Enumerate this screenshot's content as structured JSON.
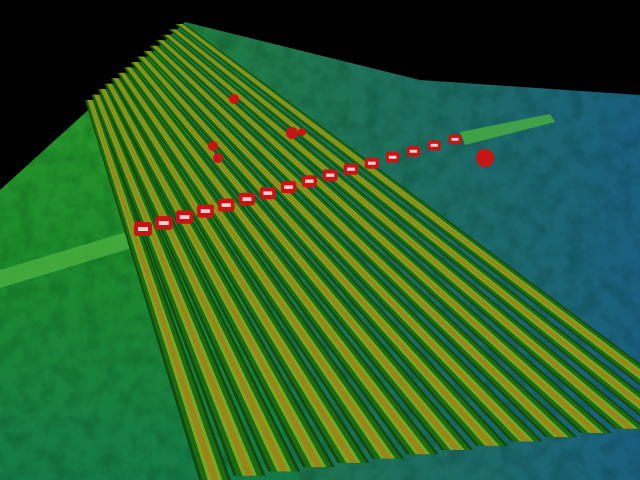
{
  "scene": {
    "colors": {
      "background": "#000000",
      "ground": "#1f8a2a",
      "ground_dark": "#0d5a3a",
      "ground_blue": "#1a5a7a",
      "ridge_edge": "#1e6a14",
      "ridge_core": "#a0801a",
      "ridge_highlight": "#7fb020",
      "pad": "#c81414",
      "pad_highlight": "#ffffff"
    },
    "ridge_count": 15,
    "pad_count": 16
  }
}
